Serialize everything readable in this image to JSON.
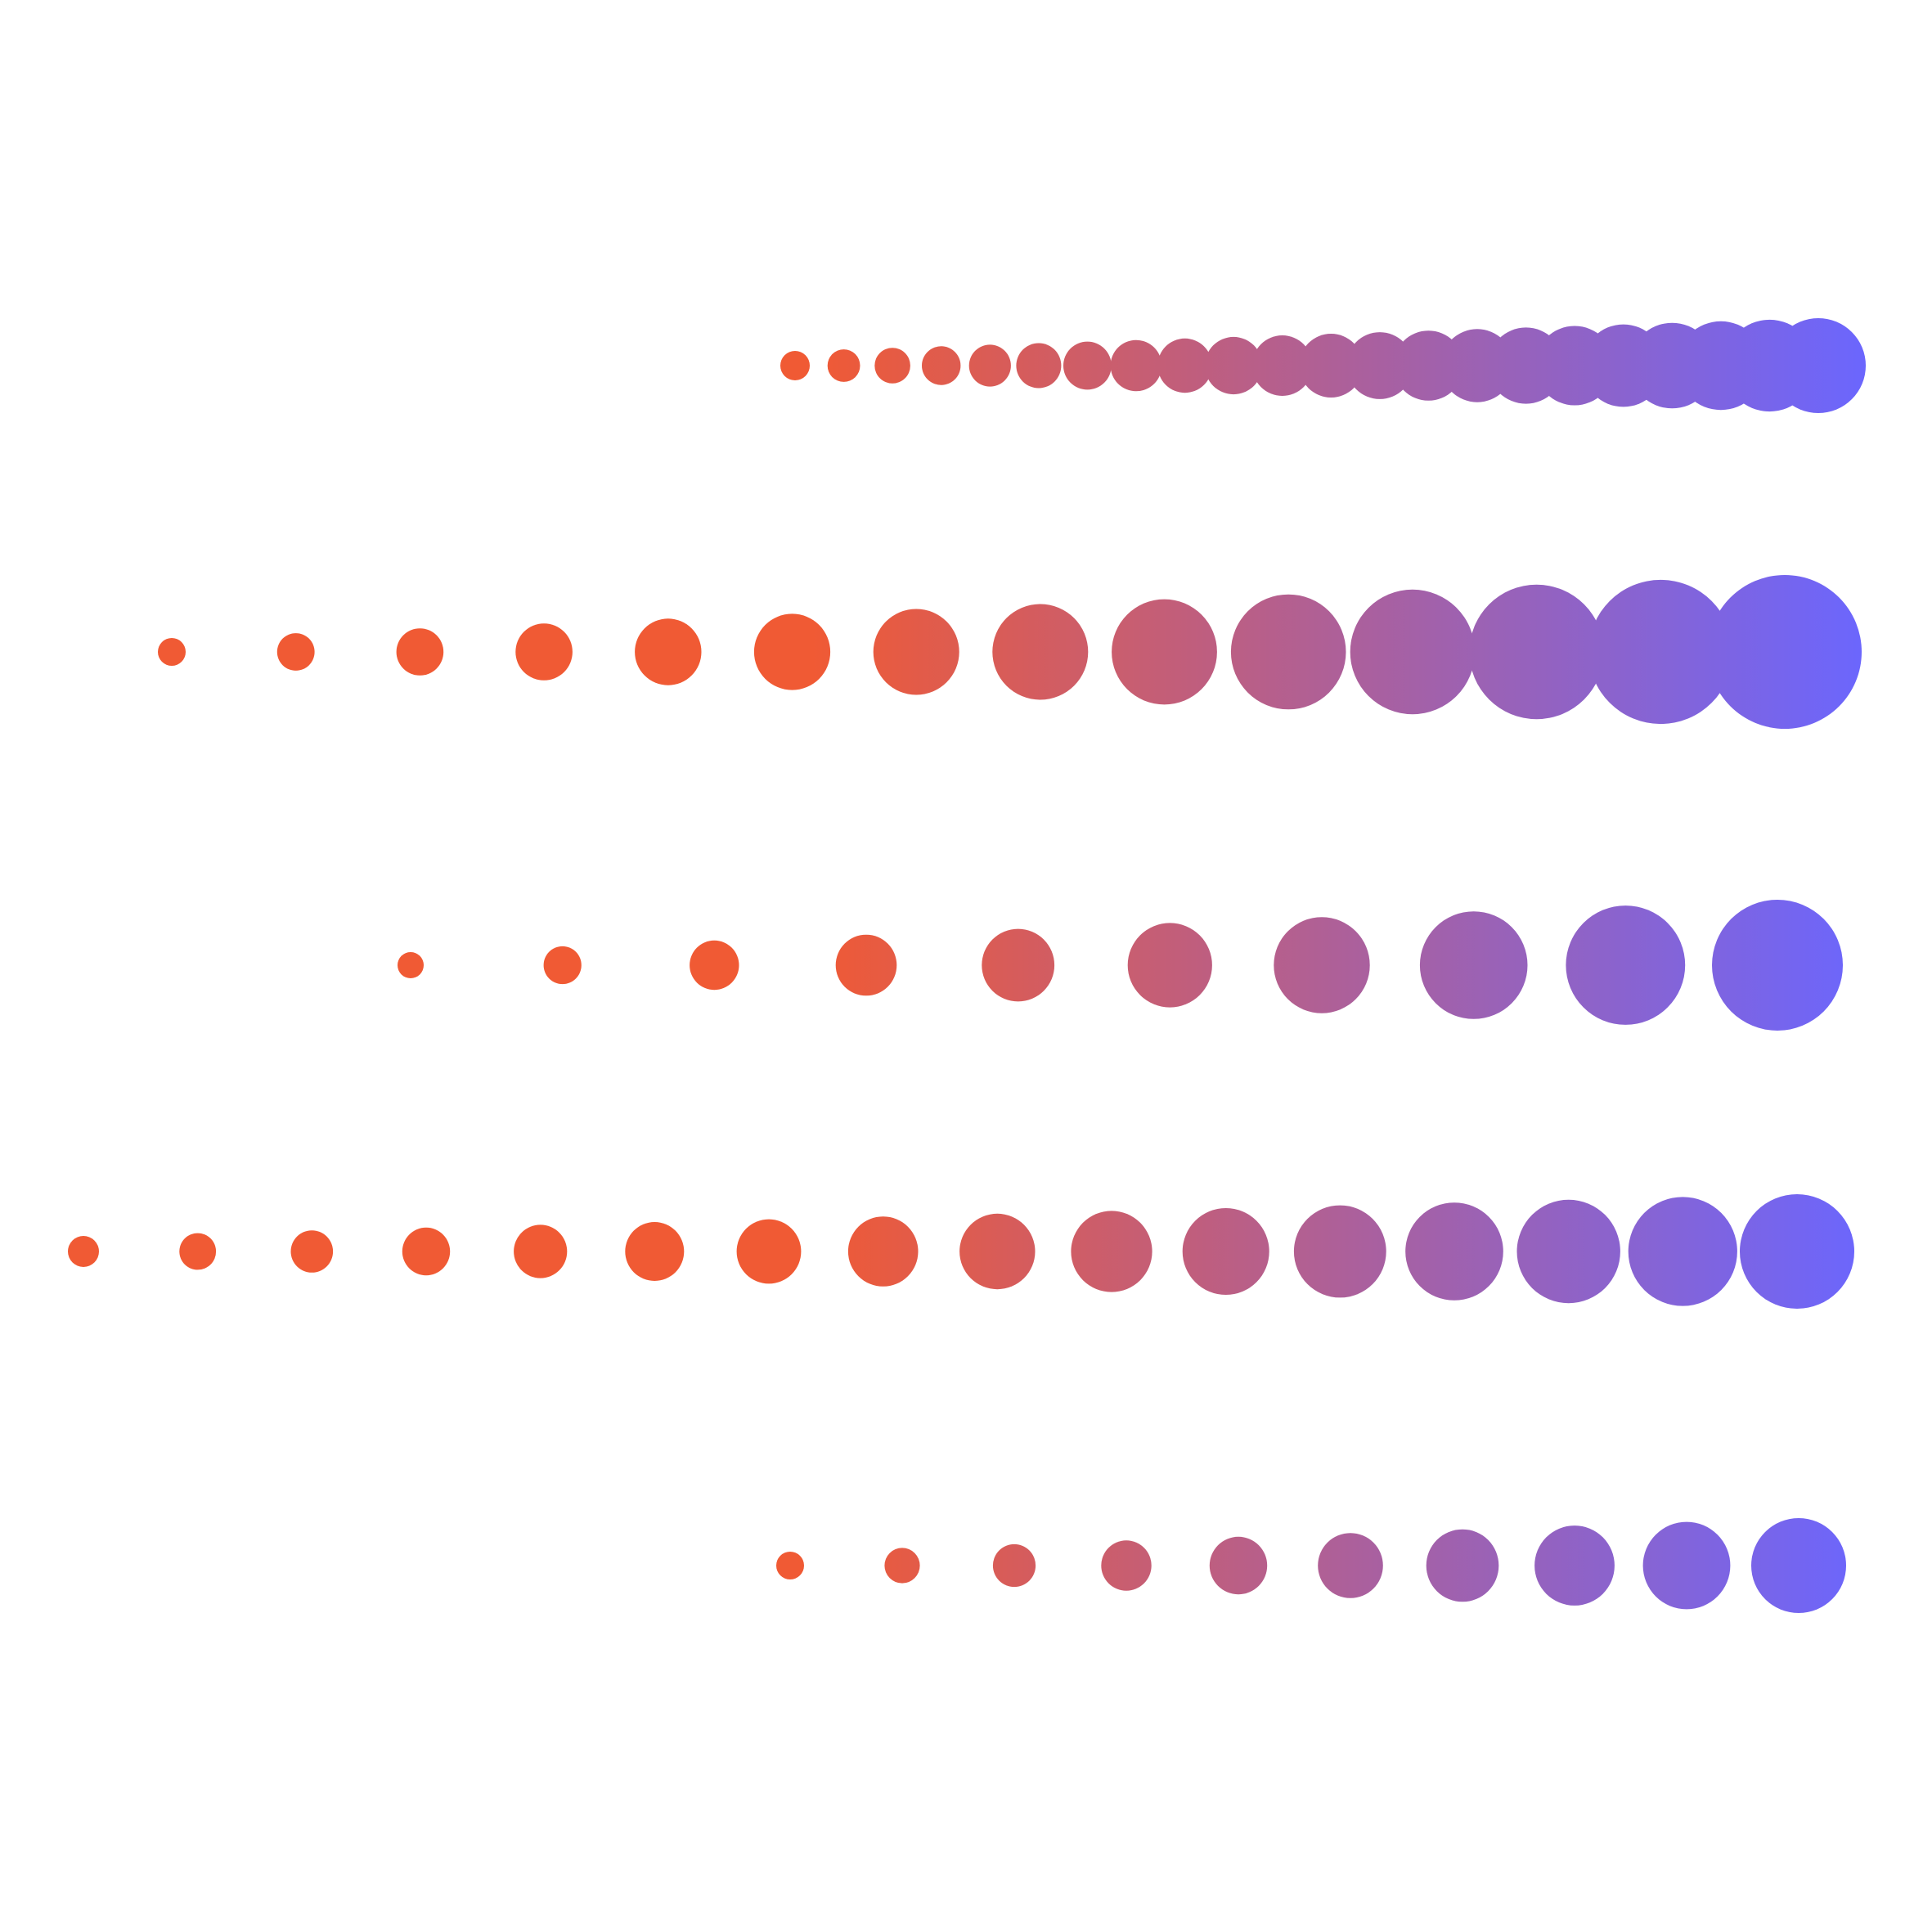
{
  "gradient": {
    "from": "#F05A34",
    "to": "#6A66FF"
  },
  "rows": [
    {
      "name": "row-1",
      "dot_count": 22
    },
    {
      "name": "row-2",
      "dot_count": 14
    },
    {
      "name": "row-3",
      "dot_count": 10
    },
    {
      "name": "row-4",
      "dot_count": 16
    },
    {
      "name": "row-5",
      "dot_count": 10
    }
  ]
}
